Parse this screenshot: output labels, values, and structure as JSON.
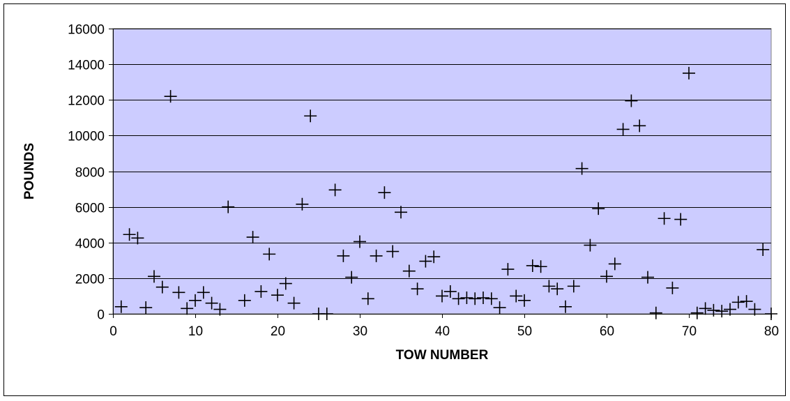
{
  "chart_data": {
    "type": "scatter",
    "title": "",
    "xlabel": "TOW NUMBER",
    "ylabel": "POUNDS",
    "xlim": [
      0,
      80
    ],
    "ylim": [
      0,
      16000
    ],
    "x_ticks": [
      0,
      10,
      20,
      30,
      40,
      50,
      60,
      70,
      80
    ],
    "y_ticks": [
      0,
      2000,
      4000,
      6000,
      8000,
      10000,
      12000,
      14000,
      16000
    ],
    "grid": "horizontal",
    "legend": "none",
    "marker": "plus",
    "colors": {
      "plot_background": "#ccccff",
      "marker": "#000000",
      "gridline": "#000000"
    },
    "series": [
      {
        "points": [
          [
            1,
            400
          ],
          [
            2,
            4450
          ],
          [
            3,
            4250
          ],
          [
            4,
            350
          ],
          [
            5,
            2100
          ],
          [
            6,
            1500
          ],
          [
            7,
            12200
          ],
          [
            8,
            1200
          ],
          [
            9,
            300
          ],
          [
            10,
            750
          ],
          [
            11,
            1200
          ],
          [
            12,
            600
          ],
          [
            13,
            250
          ],
          [
            14,
            6000
          ],
          [
            16,
            750
          ],
          [
            17,
            4300
          ],
          [
            18,
            1250
          ],
          [
            19,
            3350
          ],
          [
            20,
            1050
          ],
          [
            21,
            1700
          ],
          [
            22,
            600
          ],
          [
            23,
            6150
          ],
          [
            24,
            11100
          ],
          [
            25,
            0
          ],
          [
            26,
            0
          ],
          [
            27,
            6950
          ],
          [
            28,
            3250
          ],
          [
            29,
            2050
          ],
          [
            30,
            4050
          ],
          [
            31,
            850
          ],
          [
            32,
            3250
          ],
          [
            33,
            6800
          ],
          [
            34,
            3500
          ],
          [
            35,
            5700
          ],
          [
            36,
            2400
          ],
          [
            37,
            1400
          ],
          [
            38,
            2950
          ],
          [
            39,
            3200
          ],
          [
            40,
            1000
          ],
          [
            41,
            1250
          ],
          [
            42,
            850
          ],
          [
            43,
            900
          ],
          [
            44,
            850
          ],
          [
            45,
            900
          ],
          [
            46,
            850
          ],
          [
            47,
            350
          ],
          [
            48,
            2500
          ],
          [
            49,
            1000
          ],
          [
            50,
            750
          ],
          [
            51,
            2700
          ],
          [
            52,
            2650
          ],
          [
            53,
            1550
          ],
          [
            54,
            1400
          ],
          [
            55,
            400
          ],
          [
            56,
            1550
          ],
          [
            57,
            8150
          ],
          [
            58,
            3850
          ],
          [
            59,
            5900
          ],
          [
            60,
            2100
          ],
          [
            61,
            2800
          ],
          [
            62,
            10350
          ],
          [
            63,
            11950
          ],
          [
            64,
            10550
          ],
          [
            65,
            2050
          ],
          [
            66,
            50
          ],
          [
            67,
            5350
          ],
          [
            68,
            1450
          ],
          [
            69,
            5300
          ],
          [
            70,
            13500
          ],
          [
            71,
            50
          ],
          [
            72,
            300
          ],
          [
            73,
            200
          ],
          [
            74,
            150
          ],
          [
            75,
            250
          ],
          [
            76,
            650
          ],
          [
            77,
            700
          ],
          [
            78,
            250
          ],
          [
            79,
            3600
          ],
          [
            80,
            0
          ]
        ]
      }
    ]
  }
}
